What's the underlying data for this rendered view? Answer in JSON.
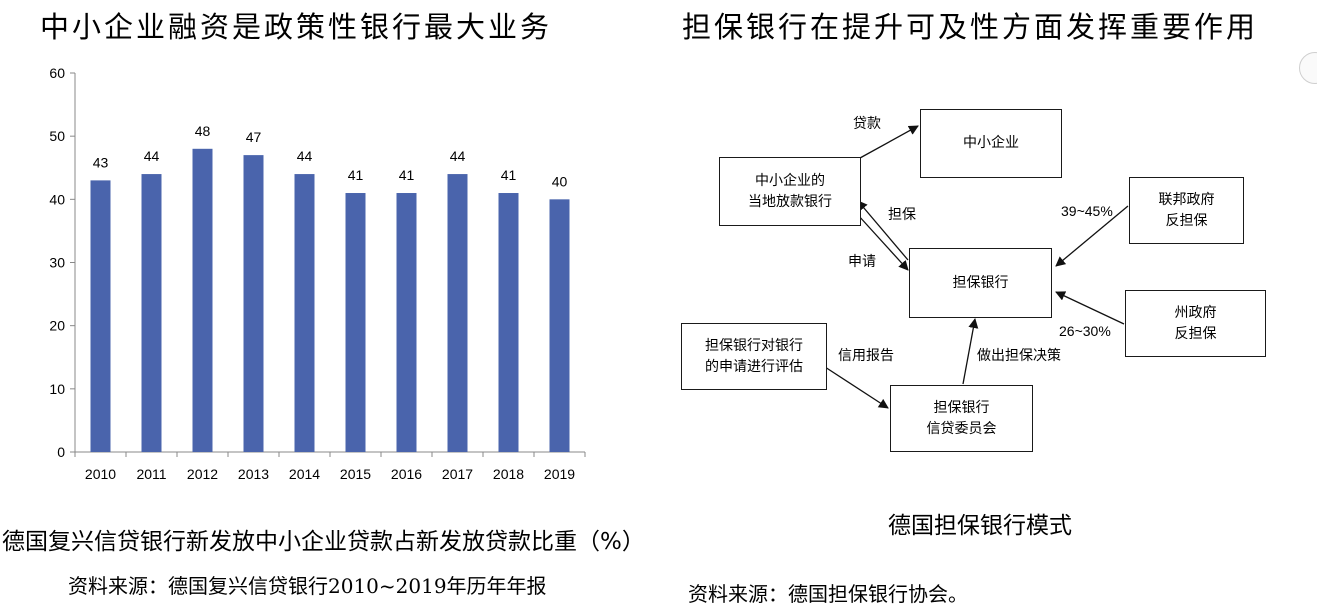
{
  "titles": {
    "left": "中小企业融资是政策性银行最大业务",
    "right": "担保银行在提升可及性方面发挥重要作用"
  },
  "captions": {
    "left": "德国复兴信贷银行新发放中小企业贷款占新发放贷款比重（%）",
    "right": "德国担保银行模式"
  },
  "sources": {
    "left": "资料来源：德国复兴信贷银行2010~2019年历年年报",
    "right": "资料来源：德国担保银行协会。"
  },
  "chart_data": {
    "type": "bar",
    "categories": [
      "2010",
      "2011",
      "2012",
      "2013",
      "2014",
      "2015",
      "2016",
      "2017",
      "2018",
      "2019"
    ],
    "values": [
      43,
      44,
      48,
      47,
      44,
      41,
      41,
      44,
      41,
      40
    ],
    "ylim": [
      0,
      60
    ],
    "yticks": [
      0,
      10,
      20,
      30,
      40,
      50,
      60
    ],
    "bar_color": "#4a64ac",
    "grid": false,
    "data_labels": true
  },
  "diagram": {
    "nodes": {
      "sme": "中小企业",
      "local_bank": [
        "中小企业的",
        "当地放款银行"
      ],
      "guarantee_bank": "担保银行",
      "federal_gov": [
        "联邦政府",
        "反担保"
      ],
      "state_gov": [
        "州政府",
        "反担保"
      ],
      "evaluation": [
        "担保银行对银行",
        "的申请进行评估"
      ],
      "committee": [
        "担保银行",
        "信贷委员会"
      ]
    },
    "edges": {
      "loan": "贷款",
      "guarantee": "担保",
      "apply": "申请",
      "federal_share": "39~45%",
      "state_share": "26~30%",
      "credit_report": "信用报告",
      "decision": "做出担保决策"
    }
  }
}
